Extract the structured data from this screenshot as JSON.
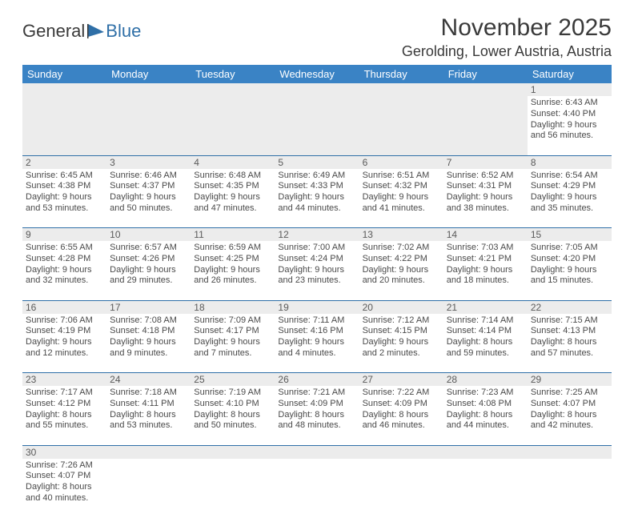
{
  "logo": {
    "text1": "General",
    "text2": "Blue"
  },
  "title": "November 2025",
  "location": "Gerolding, Lower Austria, Austria",
  "colors": {
    "header_bg": "#3a83c5",
    "header_text": "#ffffff",
    "row_divider": "#2f6fa7",
    "daynum_bg": "#ececec",
    "text": "#4a4a4a"
  },
  "weekdays": [
    "Sunday",
    "Monday",
    "Tuesday",
    "Wednesday",
    "Thursday",
    "Friday",
    "Saturday"
  ],
  "weeks": [
    [
      null,
      null,
      null,
      null,
      null,
      null,
      {
        "n": "1",
        "sunrise": "6:43 AM",
        "sunset": "4:40 PM",
        "daylight": "9 hours and 56 minutes."
      }
    ],
    [
      {
        "n": "2",
        "sunrise": "6:45 AM",
        "sunset": "4:38 PM",
        "daylight": "9 hours and 53 minutes."
      },
      {
        "n": "3",
        "sunrise": "6:46 AM",
        "sunset": "4:37 PM",
        "daylight": "9 hours and 50 minutes."
      },
      {
        "n": "4",
        "sunrise": "6:48 AM",
        "sunset": "4:35 PM",
        "daylight": "9 hours and 47 minutes."
      },
      {
        "n": "5",
        "sunrise": "6:49 AM",
        "sunset": "4:33 PM",
        "daylight": "9 hours and 44 minutes."
      },
      {
        "n": "6",
        "sunrise": "6:51 AM",
        "sunset": "4:32 PM",
        "daylight": "9 hours and 41 minutes."
      },
      {
        "n": "7",
        "sunrise": "6:52 AM",
        "sunset": "4:31 PM",
        "daylight": "9 hours and 38 minutes."
      },
      {
        "n": "8",
        "sunrise": "6:54 AM",
        "sunset": "4:29 PM",
        "daylight": "9 hours and 35 minutes."
      }
    ],
    [
      {
        "n": "9",
        "sunrise": "6:55 AM",
        "sunset": "4:28 PM",
        "daylight": "9 hours and 32 minutes."
      },
      {
        "n": "10",
        "sunrise": "6:57 AM",
        "sunset": "4:26 PM",
        "daylight": "9 hours and 29 minutes."
      },
      {
        "n": "11",
        "sunrise": "6:59 AM",
        "sunset": "4:25 PM",
        "daylight": "9 hours and 26 minutes."
      },
      {
        "n": "12",
        "sunrise": "7:00 AM",
        "sunset": "4:24 PM",
        "daylight": "9 hours and 23 minutes."
      },
      {
        "n": "13",
        "sunrise": "7:02 AM",
        "sunset": "4:22 PM",
        "daylight": "9 hours and 20 minutes."
      },
      {
        "n": "14",
        "sunrise": "7:03 AM",
        "sunset": "4:21 PM",
        "daylight": "9 hours and 18 minutes."
      },
      {
        "n": "15",
        "sunrise": "7:05 AM",
        "sunset": "4:20 PM",
        "daylight": "9 hours and 15 minutes."
      }
    ],
    [
      {
        "n": "16",
        "sunrise": "7:06 AM",
        "sunset": "4:19 PM",
        "daylight": "9 hours and 12 minutes."
      },
      {
        "n": "17",
        "sunrise": "7:08 AM",
        "sunset": "4:18 PM",
        "daylight": "9 hours and 9 minutes."
      },
      {
        "n": "18",
        "sunrise": "7:09 AM",
        "sunset": "4:17 PM",
        "daylight": "9 hours and 7 minutes."
      },
      {
        "n": "19",
        "sunrise": "7:11 AM",
        "sunset": "4:16 PM",
        "daylight": "9 hours and 4 minutes."
      },
      {
        "n": "20",
        "sunrise": "7:12 AM",
        "sunset": "4:15 PM",
        "daylight": "9 hours and 2 minutes."
      },
      {
        "n": "21",
        "sunrise": "7:14 AM",
        "sunset": "4:14 PM",
        "daylight": "8 hours and 59 minutes."
      },
      {
        "n": "22",
        "sunrise": "7:15 AM",
        "sunset": "4:13 PM",
        "daylight": "8 hours and 57 minutes."
      }
    ],
    [
      {
        "n": "23",
        "sunrise": "7:17 AM",
        "sunset": "4:12 PM",
        "daylight": "8 hours and 55 minutes."
      },
      {
        "n": "24",
        "sunrise": "7:18 AM",
        "sunset": "4:11 PM",
        "daylight": "8 hours and 53 minutes."
      },
      {
        "n": "25",
        "sunrise": "7:19 AM",
        "sunset": "4:10 PM",
        "daylight": "8 hours and 50 minutes."
      },
      {
        "n": "26",
        "sunrise": "7:21 AM",
        "sunset": "4:09 PM",
        "daylight": "8 hours and 48 minutes."
      },
      {
        "n": "27",
        "sunrise": "7:22 AM",
        "sunset": "4:09 PM",
        "daylight": "8 hours and 46 minutes."
      },
      {
        "n": "28",
        "sunrise": "7:23 AM",
        "sunset": "4:08 PM",
        "daylight": "8 hours and 44 minutes."
      },
      {
        "n": "29",
        "sunrise": "7:25 AM",
        "sunset": "4:07 PM",
        "daylight": "8 hours and 42 minutes."
      }
    ],
    [
      {
        "n": "30",
        "sunrise": "7:26 AM",
        "sunset": "4:07 PM",
        "daylight": "8 hours and 40 minutes."
      },
      null,
      null,
      null,
      null,
      null,
      null
    ]
  ],
  "labels": {
    "sunrise": "Sunrise:",
    "sunset": "Sunset:",
    "daylight": "Daylight:"
  }
}
